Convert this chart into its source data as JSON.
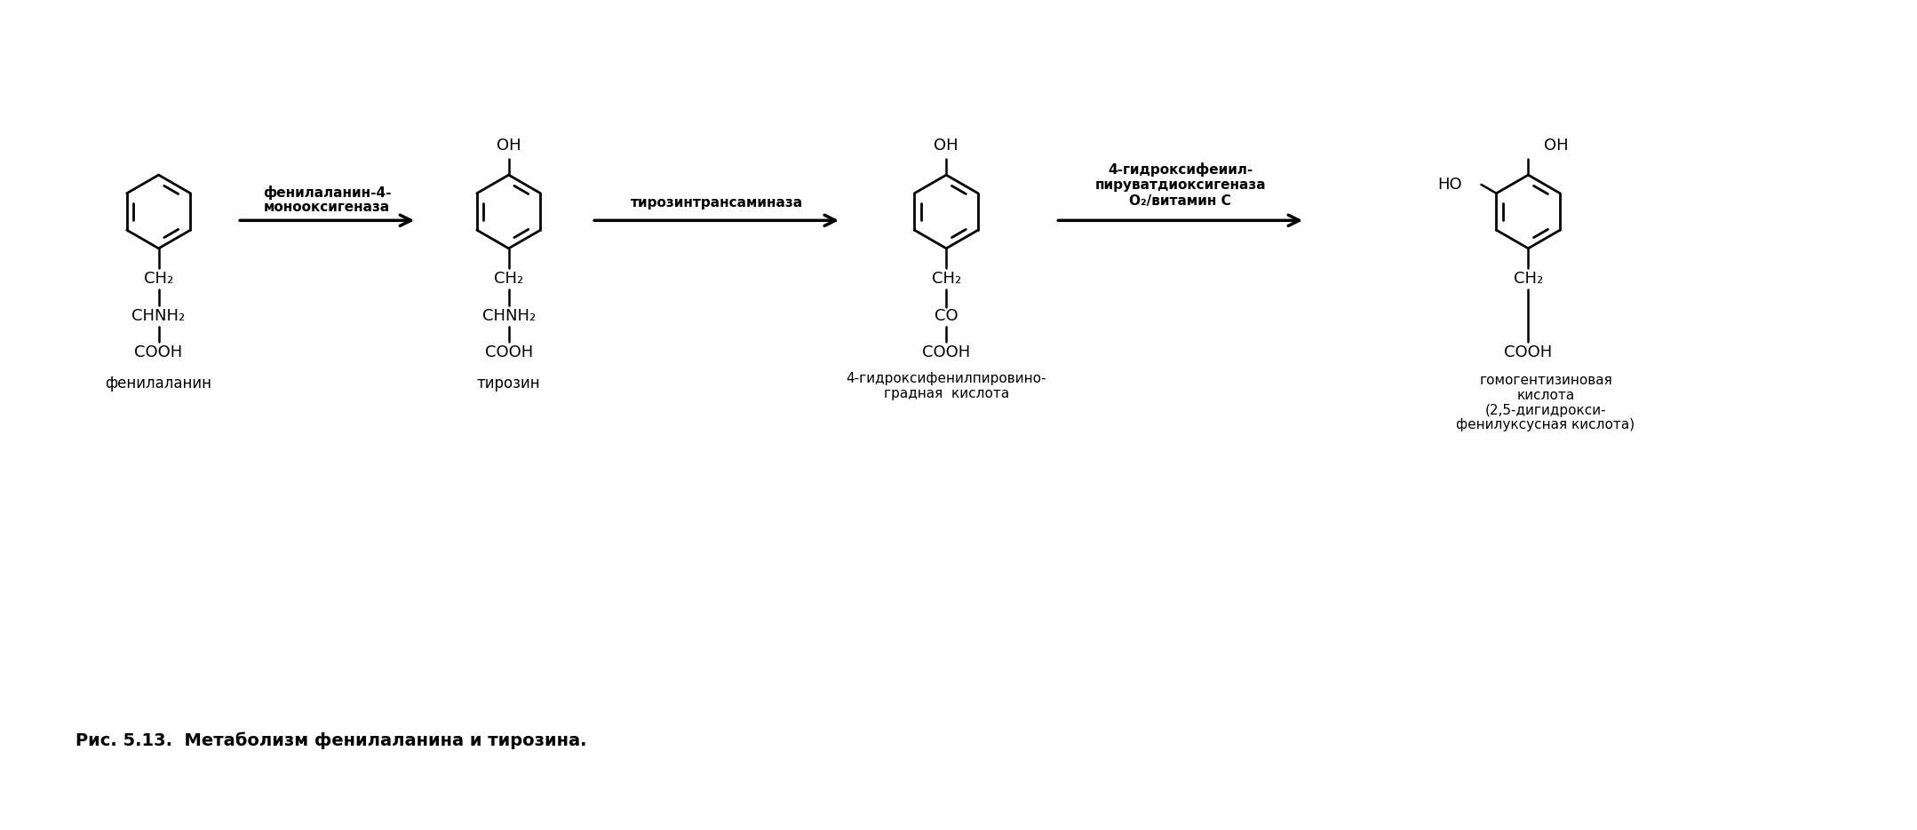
{
  "title": "Рис. 5.13.  Метаболизм фенилаланина и тирозина.",
  "background_color": "#ffffff",
  "text_color": "#000000",
  "arrow1_label_line1": "фенилаланин-4-",
  "arrow1_label_line2": "монооксигеназа",
  "arrow2_label": "тирозинтрансаминаза",
  "arrow3_label_line1": "4-гидроксифеиил-",
  "arrow3_label_line2": "пируватдиоксигеназа",
  "arrow3_label_line3": "O₂/витамин С",
  "mol1_name": "фенилаланин",
  "mol2_name": "тирозин",
  "mol3_name_line1": "4-гидроксифенилпировино-",
  "mol3_name_line2": "градная  кислота",
  "mol4_name_line1": "гомогентизиновая",
  "mol4_name_line2": "кислота",
  "mol4_name_line3": "(2,5-дигидрокси-",
  "mol4_name_line4": "фенилуксусная кислота)"
}
